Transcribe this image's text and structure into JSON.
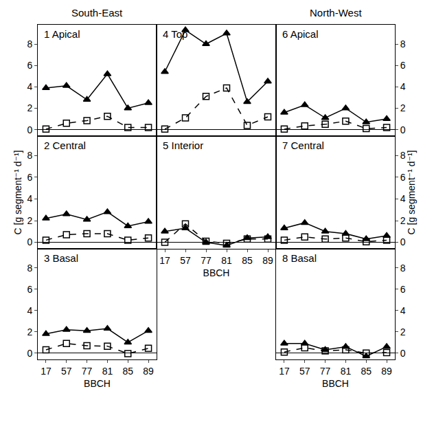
{
  "chart_data": [
    {
      "type": "line",
      "title": "1 Apical",
      "subtitle": "South-East",
      "categories": [
        "17",
        "57",
        "77",
        "81",
        "85",
        "89"
      ],
      "series": [
        {
          "color": "#000000",
          "marker": "triangle-up",
          "line_style": "solid",
          "values": [
            3.9,
            4.1,
            2.8,
            5.2,
            2.0,
            2.5
          ]
        },
        {
          "color": "#000000",
          "marker": "square-open",
          "line_style": "dash",
          "values": [
            0.05,
            0.6,
            0.85,
            1.25,
            0.2,
            0.2
          ]
        }
      ],
      "ylim": [
        -0.6,
        9.8
      ],
      "yticks": [
        0,
        2,
        4,
        6,
        8
      ],
      "grid": false,
      "tick_labels": "y"
    },
    {
      "type": "line",
      "title": "2 Central",
      "y_label": "C [g segment⁻¹ d⁻¹]",
      "categories": [
        "17",
        "57",
        "77",
        "81",
        "85",
        "89"
      ],
      "series": [
        {
          "color": "#000000",
          "marker": "triangle-up",
          "line_style": "solid",
          "values": [
            2.2,
            2.6,
            2.1,
            2.8,
            1.5,
            1.9
          ]
        },
        {
          "color": "#000000",
          "marker": "square-open",
          "line_style": "dash",
          "values": [
            0.2,
            0.7,
            0.8,
            0.8,
            0.2,
            0.4
          ]
        }
      ],
      "ylim": [
        -0.6,
        9.8
      ],
      "yticks": [
        0,
        2,
        4,
        6,
        8
      ],
      "grid": false,
      "tick_labels": "y"
    },
    {
      "type": "line",
      "title": "3 Basal",
      "x_label": "BBCH",
      "categories": [
        "17",
        "57",
        "77",
        "81",
        "85",
        "89"
      ],
      "series": [
        {
          "color": "#000000",
          "marker": "triangle-up",
          "line_style": "solid",
          "values": [
            1.8,
            2.2,
            2.1,
            2.3,
            1.0,
            2.1
          ]
        },
        {
          "color": "#000000",
          "marker": "square-open",
          "line_style": "dash",
          "values": [
            0.3,
            0.9,
            0.7,
            0.65,
            -0.05,
            0.45
          ]
        }
      ],
      "ylim": [
        -0.6,
        9.8
      ],
      "yticks": [
        0,
        2,
        4,
        6,
        8
      ],
      "grid": false,
      "tick_labels": true
    },
    {
      "type": "line",
      "title": "4 Top",
      "categories": [
        "17",
        "57",
        "77",
        "81",
        "85",
        "89"
      ],
      "series": [
        {
          "color": "#000000",
          "marker": "triangle-up",
          "line_style": "solid",
          "values": [
            5.4,
            9.3,
            8.0,
            9.0,
            2.6,
            4.5
          ]
        },
        {
          "color": "#000000",
          "marker": "square-open",
          "line_style": "dash",
          "values": [
            0.05,
            1.1,
            3.1,
            3.9,
            0.4,
            1.2
          ]
        }
      ],
      "ylim": [
        -0.6,
        9.8
      ],
      "yticks": [
        0,
        2,
        4,
        6,
        8
      ],
      "grid": false,
      "tick_labels": false
    },
    {
      "type": "line",
      "title": "5 Interior",
      "x_label": "BBCH",
      "categories": [
        "17",
        "57",
        "77",
        "81",
        "85",
        "89"
      ],
      "series": [
        {
          "color": "#000000",
          "marker": "triangle-up",
          "line_style": "solid",
          "values": [
            1.0,
            1.3,
            0.0,
            -0.3,
            0.4,
            0.5
          ]
        },
        {
          "color": "#000000",
          "marker": "square-open",
          "line_style": "dash",
          "values": [
            0.0,
            1.7,
            0.1,
            -0.1,
            0.3,
            0.3
          ]
        }
      ],
      "ylim": [
        -0.6,
        9.8
      ],
      "yticks": [
        0,
        2,
        4,
        6,
        8
      ],
      "grid": false,
      "tick_labels": "x"
    },
    {
      "type": "line",
      "title": "6 Apical",
      "subtitle": "North-West",
      "categories": [
        "17",
        "57",
        "77",
        "81",
        "85",
        "89"
      ],
      "series": [
        {
          "color": "#000000",
          "marker": "triangle-up",
          "line_style": "solid",
          "values": [
            1.6,
            2.3,
            1.1,
            2.0,
            0.7,
            1.0
          ]
        },
        {
          "color": "#000000",
          "marker": "square-open",
          "line_style": "dash",
          "values": [
            0.05,
            0.35,
            0.5,
            0.8,
            0.1,
            0.2
          ]
        }
      ],
      "ylim": [
        -0.6,
        9.8
      ],
      "yticks": [
        0,
        2,
        4,
        6,
        8
      ],
      "grid": false,
      "tick_labels": "y"
    },
    {
      "type": "line",
      "title": "7 Central",
      "y_label": "C [g segment⁻¹ d⁻¹]",
      "categories": [
        "17",
        "57",
        "77",
        "81",
        "85",
        "89"
      ],
      "series": [
        {
          "color": "#000000",
          "marker": "triangle-up",
          "line_style": "solid",
          "values": [
            1.3,
            1.8,
            1.0,
            0.8,
            0.3,
            0.6
          ]
        },
        {
          "color": "#000000",
          "marker": "square-open",
          "line_style": "dash",
          "values": [
            0.2,
            0.5,
            0.3,
            0.4,
            0.05,
            0.2
          ]
        }
      ],
      "ylim": [
        -0.6,
        9.8
      ],
      "yticks": [
        0,
        2,
        4,
        6,
        8
      ],
      "grid": false,
      "tick_labels": "y"
    },
    {
      "type": "line",
      "title": "8 Basal",
      "x_label": "BBCH",
      "categories": [
        "17",
        "57",
        "77",
        "81",
        "85",
        "89"
      ],
      "series": [
        {
          "color": "#000000",
          "marker": "triangle-up",
          "line_style": "solid",
          "values": [
            0.9,
            0.9,
            0.3,
            0.6,
            -0.3,
            0.6
          ]
        },
        {
          "color": "#000000",
          "marker": "square-open",
          "line_style": "dash",
          "values": [
            0.1,
            0.5,
            0.2,
            0.3,
            0.0,
            0.05
          ]
        }
      ],
      "ylim": [
        -0.6,
        9.8
      ],
      "yticks": [
        0,
        2,
        4,
        6,
        8
      ],
      "grid": false,
      "tick_labels": true
    }
  ]
}
